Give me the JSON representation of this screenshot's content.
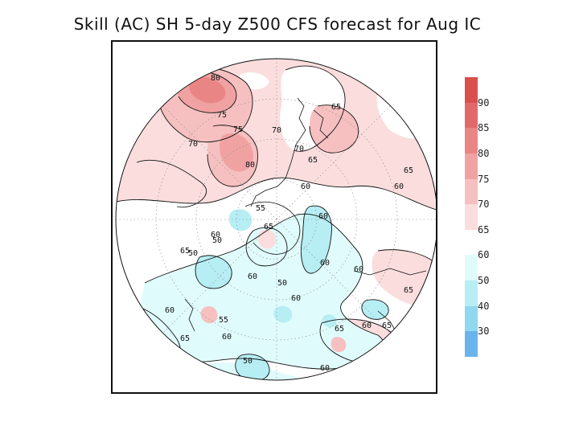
{
  "title": "Skill (AC) SH 5-day Z500 CFS forecast for Aug IC",
  "legend": {
    "bins": [
      {
        "label": "",
        "color": "#d9504c"
      },
      {
        "label": "90",
        "color": "#e2696a"
      },
      {
        "label": "85",
        "color": "#e98685"
      },
      {
        "label": "80",
        "color": "#f0a2a2"
      },
      {
        "label": "75",
        "color": "#f6c0c0"
      },
      {
        "label": "70",
        "color": "#fbdddd"
      },
      {
        "label": "65",
        "color": "#ffffff"
      },
      {
        "label": "60",
        "color": "#e0fbfc"
      },
      {
        "label": "50",
        "color": "#b6eef4"
      },
      {
        "label": "40",
        "color": "#90d8ef"
      },
      {
        "label": "30",
        "color": "#6ab4ec"
      }
    ]
  },
  "map": {
    "contour_labels": [
      "80",
      "75",
      "75",
      "70",
      "70",
      "80",
      "70",
      "65",
      "65",
      "65",
      "60",
      "60",
      "55",
      "65",
      "60",
      "60",
      "50",
      "60",
      "60",
      "65",
      "50",
      "60",
      "65",
      "60",
      "55",
      "65",
      "60",
      "50",
      "60",
      "65",
      "65",
      "60",
      "60",
      "50"
    ]
  }
}
